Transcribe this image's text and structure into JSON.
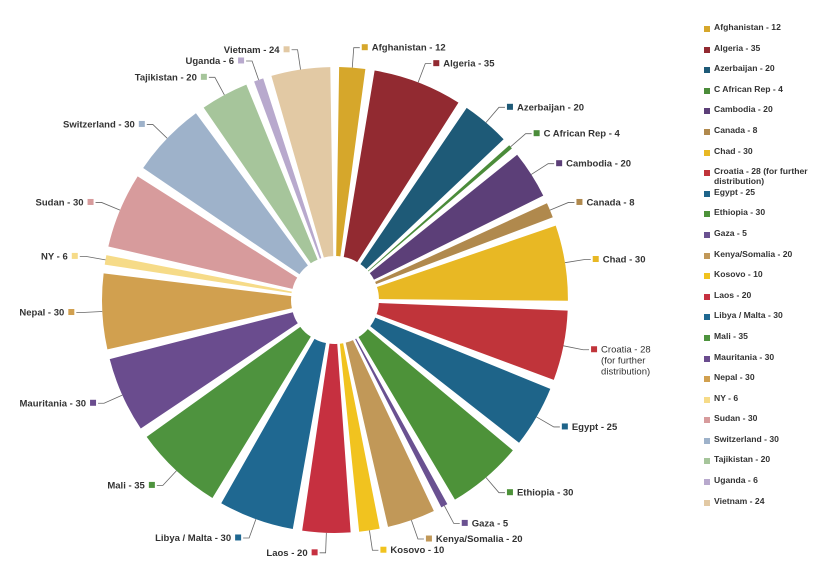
{
  "chart_data": {
    "type": "pie",
    "exploded": true,
    "start_angle_deg": 0,
    "direction": "clockwise",
    "slices": [
      {
        "name": "Afghanistan",
        "value": 12,
        "label": "Afghanistan - 12",
        "legend": "Afghanistan - 12",
        "color": "#D6A72B"
      },
      {
        "name": "Algeria",
        "value": 35,
        "label": "Algeria - 35",
        "legend": "Algeria - 35",
        "color": "#922A31"
      },
      {
        "name": "Azerbaijan",
        "value": 20,
        "label": "Azerbaijan - 20",
        "legend": "Azerbaijan - 20",
        "color": "#1E5A77"
      },
      {
        "name": "C African Rep",
        "value": 4,
        "label": "C African Rep - 4",
        "legend": "C African Rep - 4",
        "color": "#4B8C3A"
      },
      {
        "name": "Cambodia",
        "value": 20,
        "label": "Cambodia - 20",
        "legend": "Cambodia - 20",
        "color": "#5C3F78"
      },
      {
        "name": "Canada",
        "value": 8,
        "label": "Canada - 8",
        "legend": "Canada - 8",
        "color": "#B0894D"
      },
      {
        "name": "Chad",
        "value": 30,
        "label": "Chad - 30",
        "legend": "Chad - 30",
        "color": "#E8B824"
      },
      {
        "name": "Croatia",
        "value": 28,
        "label": "Croatia - 28 (for further distribution)",
        "legend": "Croatia - 28 (for further distribution)",
        "color": "#C0343A"
      },
      {
        "name": "Egypt",
        "value": 25,
        "label": "Egypt - 25",
        "legend": "Egypt - 25",
        "color": "#1E6489"
      },
      {
        "name": "Ethiopia",
        "value": 30,
        "label": "Ethiopia - 30",
        "legend": "Ethiopia - 30",
        "color": "#4D9239"
      },
      {
        "name": "Gaza",
        "value": 5,
        "label": "Gaza - 5",
        "legend": "Gaza - 5",
        "color": "#6A5191"
      },
      {
        "name": "Kenya/Somalia",
        "value": 20,
        "label": "Kenya/Somalia - 20",
        "legend": "Kenya/Somalia - 20",
        "color": "#C19858"
      },
      {
        "name": "Kosovo",
        "value": 10,
        "label": "Kosovo - 10",
        "legend": "Kosovo - 10",
        "color": "#F1C31F"
      },
      {
        "name": "Laos",
        "value": 20,
        "label": "Laos - 20",
        "legend": "Laos - 20",
        "color": "#C63040"
      },
      {
        "name": "Libya / Malta",
        "value": 30,
        "label": "Libya / Malta - 30",
        "legend": "Libya / Malta - 30",
        "color": "#1F6891"
      },
      {
        "name": "Mali",
        "value": 35,
        "label": "Mali - 35",
        "legend": "Mali - 35",
        "color": "#4E933E"
      },
      {
        "name": "Mauritania",
        "value": 30,
        "label": "Mauritania - 30",
        "legend": "Mauritania - 30",
        "color": "#6A4C8E"
      },
      {
        "name": "Nepal",
        "value": 30,
        "label": "Nepal - 30",
        "legend": "Nepal - 30",
        "color": "#D1A04F"
      },
      {
        "name": "NY",
        "value": 6,
        "label": "NY - 6",
        "legend": "NY - 6",
        "color": "#F6DB88"
      },
      {
        "name": "Sudan",
        "value": 30,
        "label": "Sudan - 30",
        "legend": "Sudan - 30",
        "color": "#D79B9C"
      },
      {
        "name": "Switzerland",
        "value": 30,
        "label": "Switzerland - 30",
        "legend": "Switzerland - 30",
        "color": "#9EB2CA"
      },
      {
        "name": "Tajikistan",
        "value": 20,
        "label": "Tajikistan - 20",
        "legend": "Tajikistan - 20",
        "color": "#A6C59B"
      },
      {
        "name": "Uganda",
        "value": 6,
        "label": "Uganda - 6",
        "legend": "Uganda - 6",
        "color": "#B8A9CD"
      },
      {
        "name": "Vietnam",
        "value": 24,
        "label": "Vietnam - 24",
        "legend": "Vietnam - 24",
        "color": "#E2C9A4"
      }
    ],
    "legend_position": "right",
    "title": ""
  }
}
